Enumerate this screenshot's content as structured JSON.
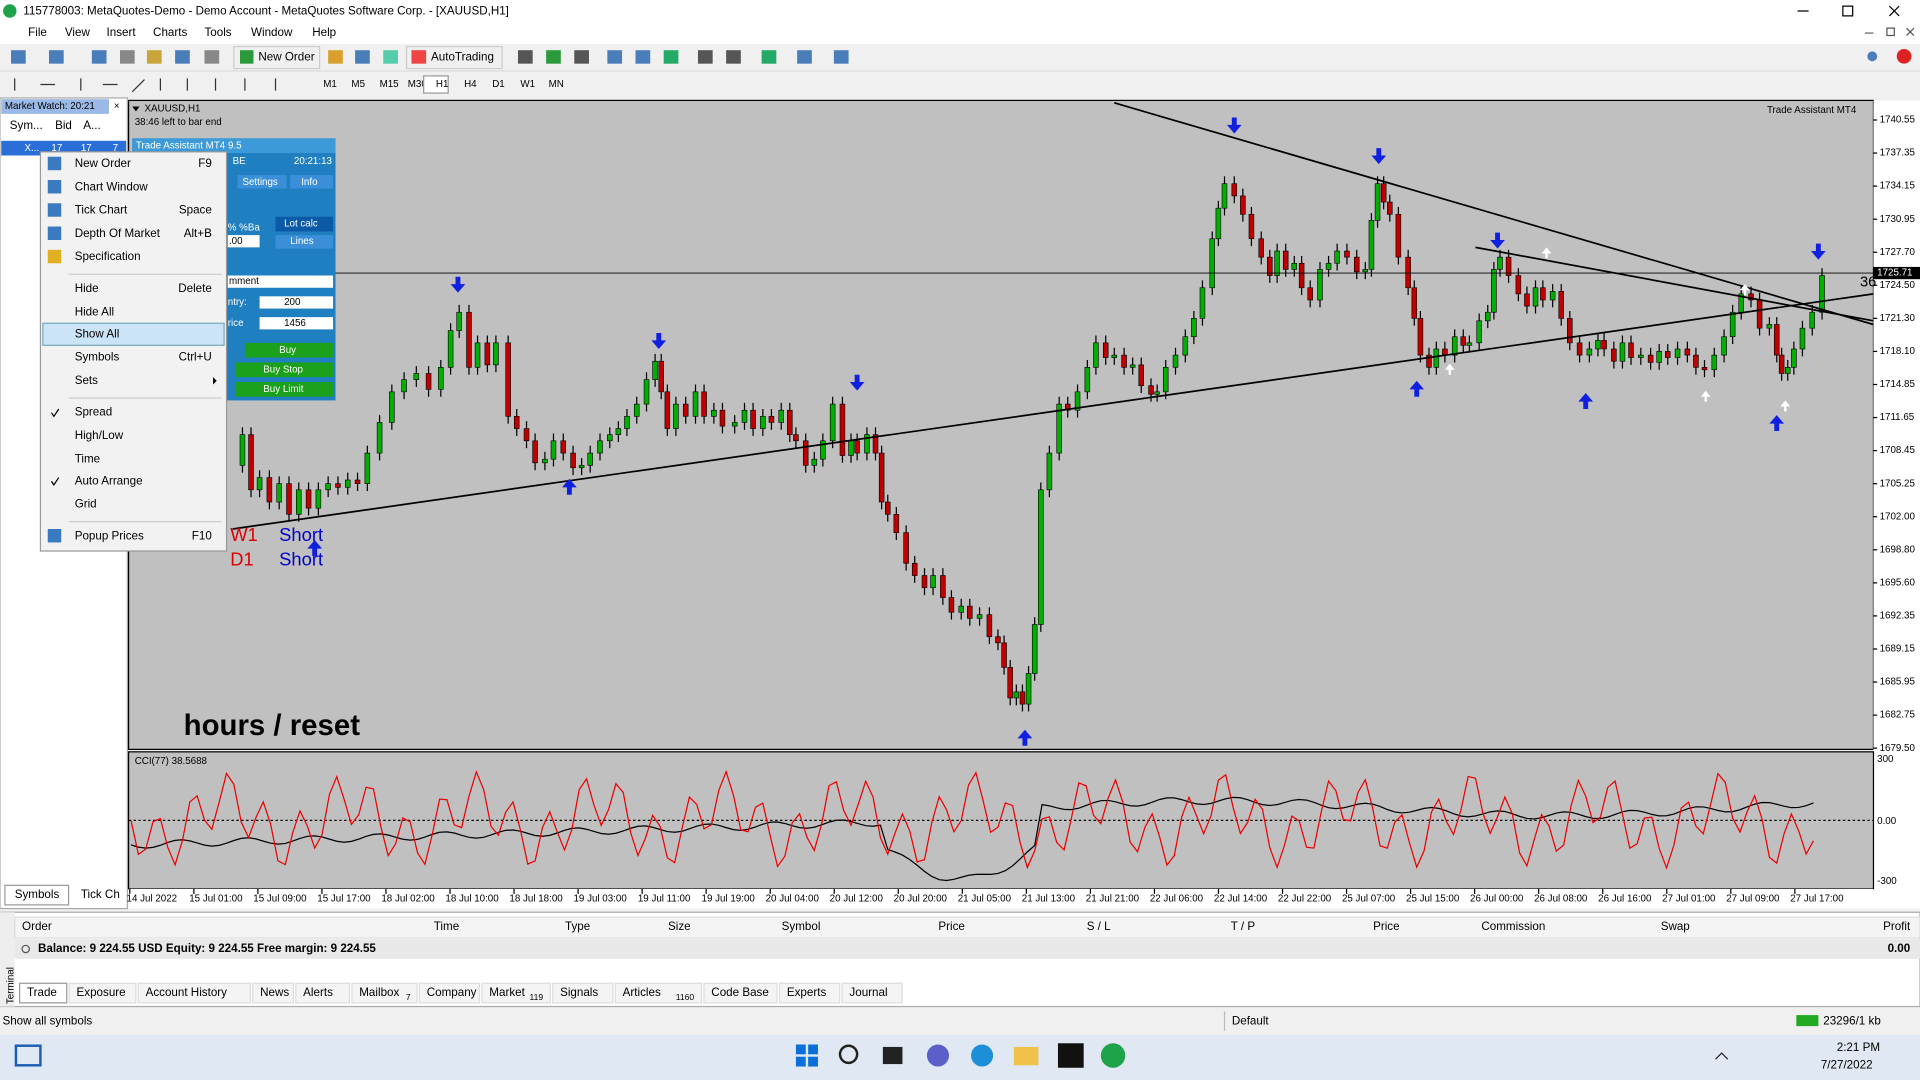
{
  "window": {
    "title": "115778003: MetaQuotes-Demo - Demo Account - MetaQuotes Software Corp. - [XAUUSD,H1]"
  },
  "menu": [
    "File",
    "View",
    "Insert",
    "Charts",
    "Tools",
    "Window",
    "Help"
  ],
  "toolbar": {
    "new_order": "New Order",
    "autotrading": "AutoTrading",
    "timeframes": [
      "M1",
      "M5",
      "M15",
      "M30",
      "H1",
      "H4",
      "D1",
      "W1",
      "MN"
    ]
  },
  "market_watch": {
    "title": "Market Watch: 20:21",
    "columns": [
      "Sym...",
      "Bid",
      "A..."
    ],
    "row": [
      "X...",
      "17",
      "17",
      "7"
    ],
    "tabs": [
      "Symbols",
      "Tick Ch"
    ]
  },
  "context_menu": {
    "items": [
      {
        "label": "New Order",
        "shortcut": "F9"
      },
      {
        "label": "Chart Window"
      },
      {
        "label": "Tick Chart",
        "shortcut": "Space"
      },
      {
        "label": "Depth Of Market",
        "shortcut": "Alt+B"
      },
      {
        "label": "Specification"
      },
      {
        "label": "Hide",
        "shortcut": "Delete"
      },
      {
        "label": "Hide All"
      },
      {
        "label": "Show All"
      },
      {
        "label": "Symbols",
        "shortcut": "Ctrl+U"
      },
      {
        "label": "Sets"
      },
      {
        "label": "Spread"
      },
      {
        "label": "High/Low"
      },
      {
        "label": "Time"
      },
      {
        "label": "Auto Arrange"
      },
      {
        "label": "Grid"
      },
      {
        "label": "Popup Prices",
        "shortcut": "F10"
      }
    ]
  },
  "trade_assistant": {
    "title": "Trade Assistant MT4 9.5",
    "be": "BE",
    "clock": "20:21:13",
    "settings": "Settings",
    "info": "Info",
    "ratio": "% %Ba",
    "lot_calc": "Lot calc",
    "lot": ".00",
    "lines": "Lines",
    "comment": "mment",
    "entry_label": "ntry:",
    "entry": "200",
    "price_label": "rice",
    "price": "1456",
    "buy": "Buy",
    "buy_stop": "Buy Stop",
    "buy_limit": "Buy Limit"
  },
  "chart": {
    "symbol": "XAUUSD,H1",
    "bar_note": "38:46 left to bar end",
    "indicator": "Trade Assistant MT4",
    "overlay": "hours / reset",
    "signals": {
      "w1": "W1",
      "d1": "D1",
      "short1": "Short",
      "short2": "Short"
    },
    "current_price": "1725.71",
    "edge_label": "36",
    "price_labels": [
      "1740.55",
      "1737.35",
      "1734.15",
      "1730.95",
      "1727.70",
      "1724.50",
      "1721.30",
      "1718.10",
      "1714.85",
      "1711.65",
      "1708.45",
      "1705.25",
      "1702.00",
      "1698.80",
      "1695.60",
      "1692.35",
      "1689.15",
      "1685.95",
      "1682.75",
      "1679.50"
    ],
    "cci_label": "CCI(77) 38.5688",
    "cci_levels": [
      "300",
      "0.00",
      "-300"
    ],
    "time_labels": [
      "14 Jul 2022",
      "15 Jul 01:00",
      "15 Jul 09:00",
      "15 Jul 17:00",
      "18 Jul 02:00",
      "18 Jul 10:00",
      "18 Jul 18:00",
      "19 Jul 03:00",
      "19 Jul 11:00",
      "19 Jul 19:00",
      "20 Jul 04:00",
      "20 Jul 12:00",
      "20 Jul 20:00",
      "21 Jul 05:00",
      "21 Jul 13:00",
      "21 Jul 21:00",
      "22 Jul 06:00",
      "22 Jul 14:00",
      "22 Jul 22:00",
      "25 Jul 07:00",
      "25 Jul 15:00",
      "26 Jul 00:00",
      "26 Jul 08:00",
      "26 Jul 16:00",
      "27 Jul 01:00",
      "27 Jul 09:00",
      "27 Jul 17:00"
    ]
  },
  "terminal": {
    "side_label": "Terminal",
    "columns": [
      "Order",
      "Time",
      "Type",
      "Size",
      "Symbol",
      "Price",
      "S / L",
      "T / P",
      "Price",
      "Commission",
      "Swap",
      "Profit"
    ],
    "balance": "Balance: 9 224.55 USD  Equity: 9 224.55  Free margin: 9 224.55",
    "profit": "0.00",
    "tabs": [
      {
        "label": "Trade"
      },
      {
        "label": "Exposure"
      },
      {
        "label": "Account History"
      },
      {
        "label": "News"
      },
      {
        "label": "Alerts"
      },
      {
        "label": "Mailbox",
        "badge": "7"
      },
      {
        "label": "Company"
      },
      {
        "label": "Market",
        "badge": "119"
      },
      {
        "label": "Signals"
      },
      {
        "label": "Articles",
        "badge": "1160"
      },
      {
        "label": "Code Base"
      },
      {
        "label": "Experts"
      },
      {
        "label": "Journal"
      }
    ]
  },
  "status": {
    "message": "Show all symbols",
    "profile": "Default",
    "traffic": "23296/1 kb"
  },
  "taskbar": {
    "time": "2:21 PM",
    "date": "7/27/2022"
  }
}
